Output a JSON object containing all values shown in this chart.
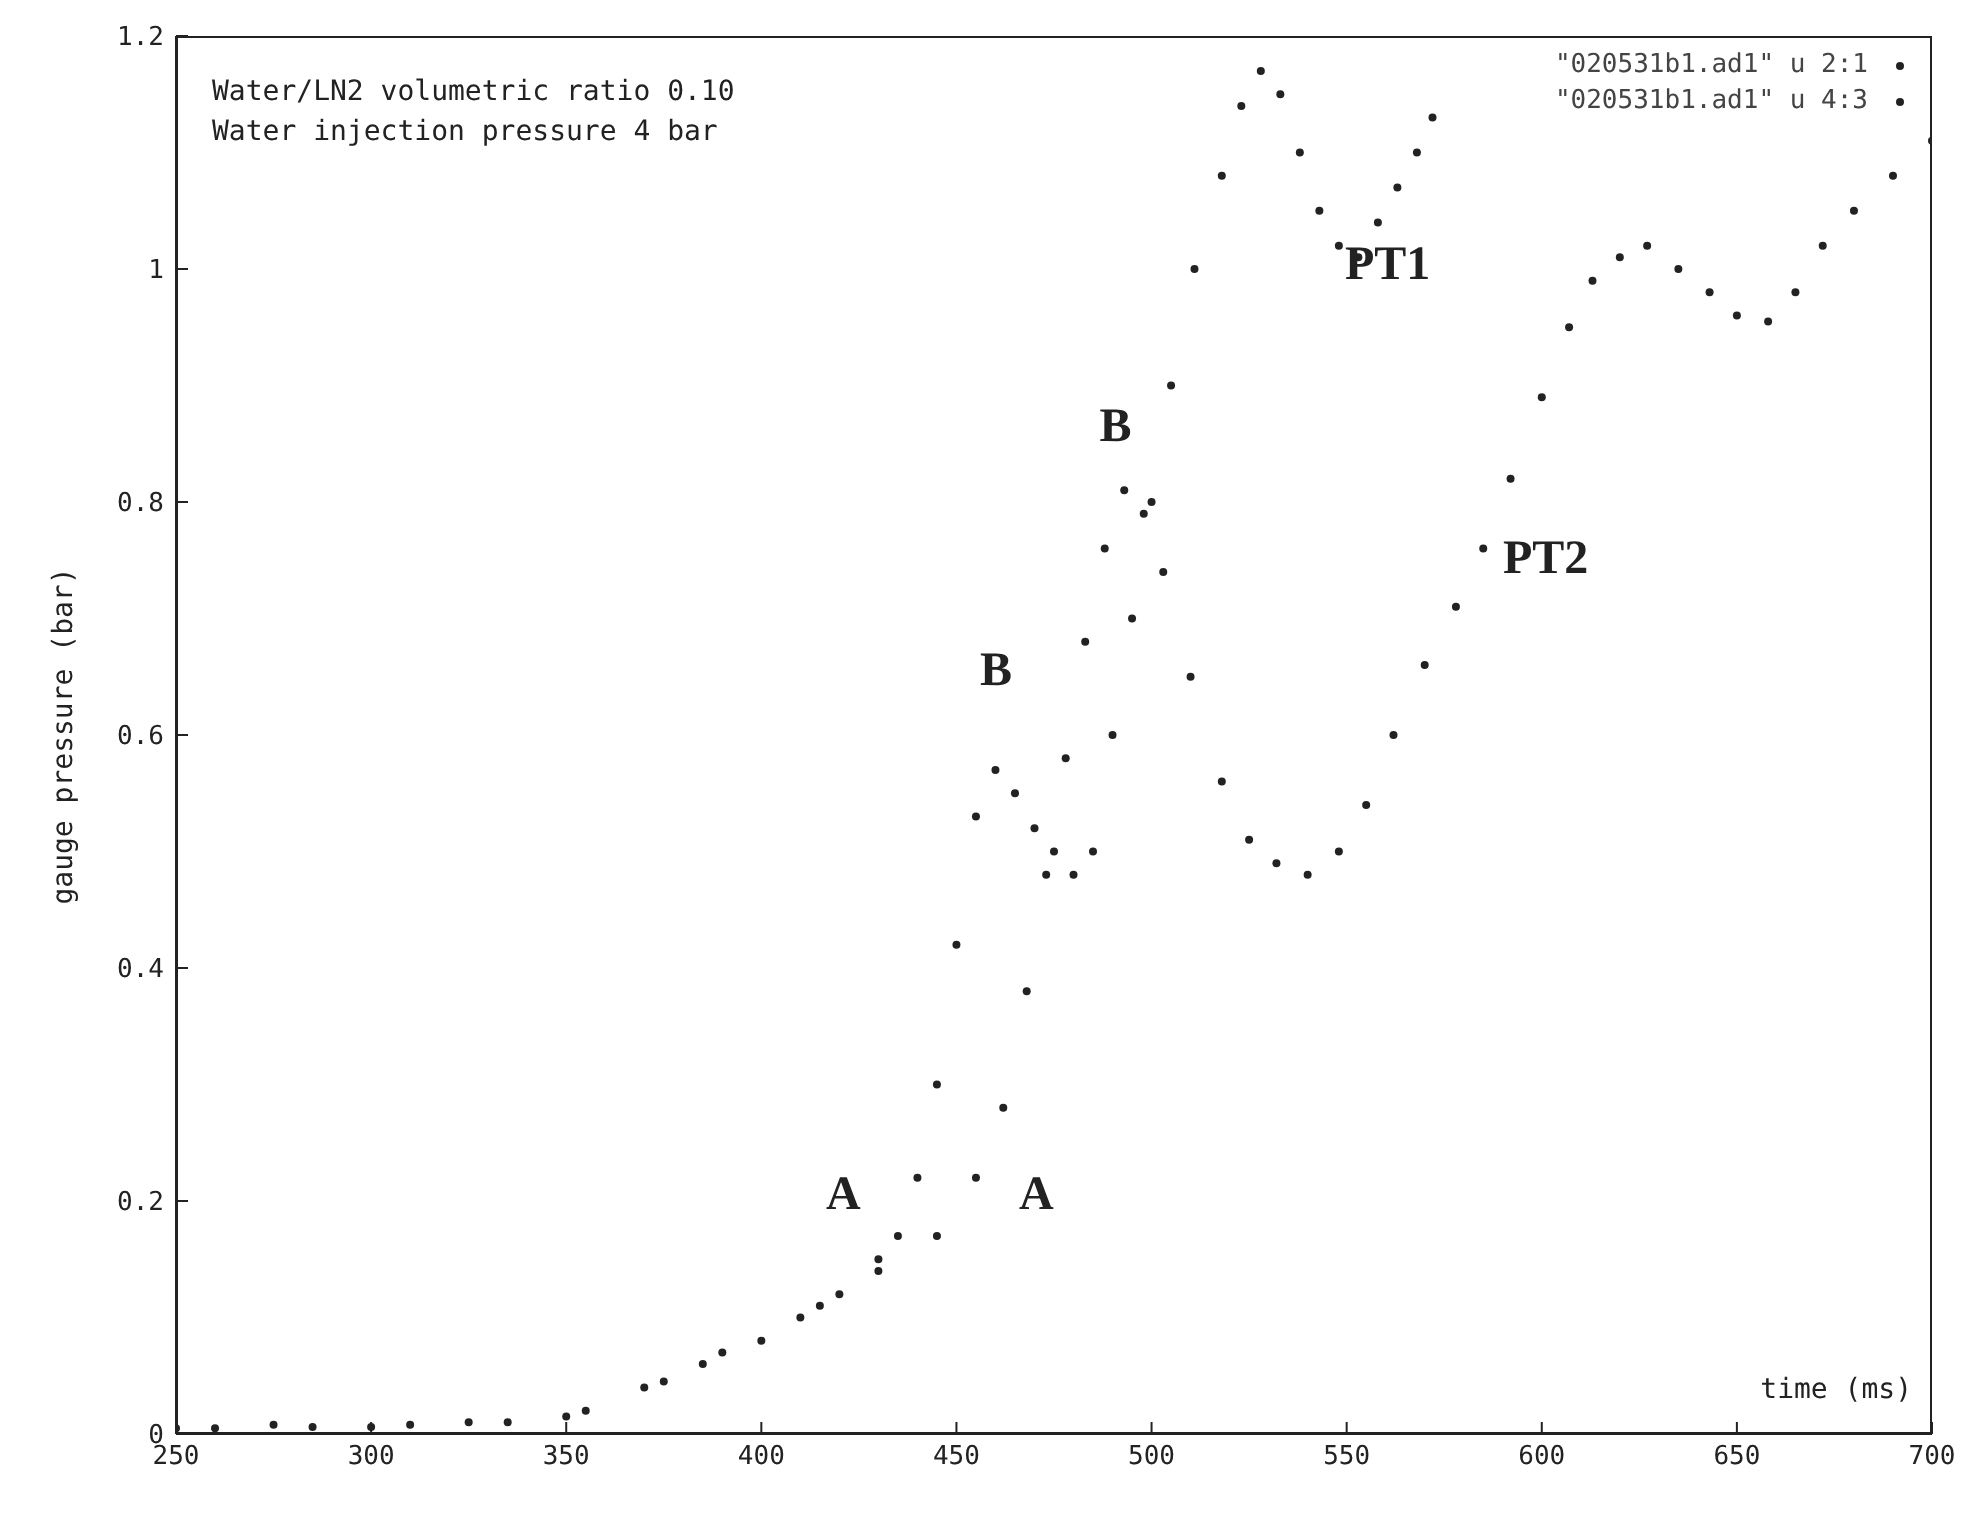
{
  "chart_data": {
    "type": "scatter",
    "xlabel": "time (ms)",
    "ylabel": "gauge pressure (bar)",
    "xlim": [
      250,
      700
    ],
    "xticks": [
      250,
      300,
      350,
      400,
      450,
      500,
      550,
      600,
      650,
      700
    ],
    "ylim": [
      0,
      1.2
    ],
    "yticks": [
      0,
      0.2,
      0.4,
      0.6,
      0.8,
      1,
      1.2
    ],
    "grid": false,
    "legend": "top right",
    "marker": "circle",
    "annotations": [
      "Water/LN2 volumetric ratio 0.10",
      "Water injection pressure 4 bar",
      "A",
      "A",
      "B",
      "B",
      "PT1",
      "PT2"
    ],
    "series": [
      {
        "name": "\"020531b1.ad1\" u 2:1",
        "color": "#222222",
        "x": [
          250,
          275,
          300,
          325,
          350,
          370,
          385,
          400,
          410,
          420,
          430,
          435,
          440,
          445,
          450,
          455,
          460,
          465,
          470,
          475,
          480,
          485,
          490,
          495,
          500,
          505,
          511,
          518,
          523,
          528,
          533,
          538,
          543,
          548,
          553,
          558,
          563,
          568,
          572
        ],
        "values": [
          0.005,
          0.008,
          0.006,
          0.01,
          0.015,
          0.04,
          0.06,
          0.08,
          0.1,
          0.12,
          0.15,
          0.17,
          0.22,
          0.3,
          0.42,
          0.53,
          0.57,
          0.55,
          0.52,
          0.5,
          0.48,
          0.5,
          0.6,
          0.7,
          0.8,
          0.9,
          1.0,
          1.08,
          1.14,
          1.17,
          1.15,
          1.1,
          1.05,
          1.02,
          1.01,
          1.04,
          1.07,
          1.1,
          1.13
        ]
      },
      {
        "name": "\"020531b1.ad1\" u 4:3",
        "color": "#222222",
        "x": [
          260,
          285,
          310,
          335,
          355,
          375,
          390,
          415,
          430,
          445,
          455,
          462,
          468,
          473,
          478,
          483,
          488,
          493,
          498,
          503,
          510,
          518,
          525,
          532,
          540,
          548,
          555,
          562,
          570,
          578,
          585,
          592,
          600,
          607,
          613,
          620,
          627,
          635,
          643,
          650,
          658,
          665,
          672,
          680,
          690,
          700
        ],
        "values": [
          0.005,
          0.006,
          0.008,
          0.01,
          0.02,
          0.045,
          0.07,
          0.11,
          0.14,
          0.17,
          0.22,
          0.28,
          0.38,
          0.48,
          0.58,
          0.68,
          0.76,
          0.81,
          0.79,
          0.74,
          0.65,
          0.56,
          0.51,
          0.49,
          0.48,
          0.5,
          0.54,
          0.6,
          0.66,
          0.71,
          0.76,
          0.82,
          0.89,
          0.95,
          0.99,
          1.01,
          1.02,
          1.0,
          0.98,
          0.96,
          0.955,
          0.98,
          1.02,
          1.05,
          1.08,
          1.11
        ]
      }
    ]
  }
}
